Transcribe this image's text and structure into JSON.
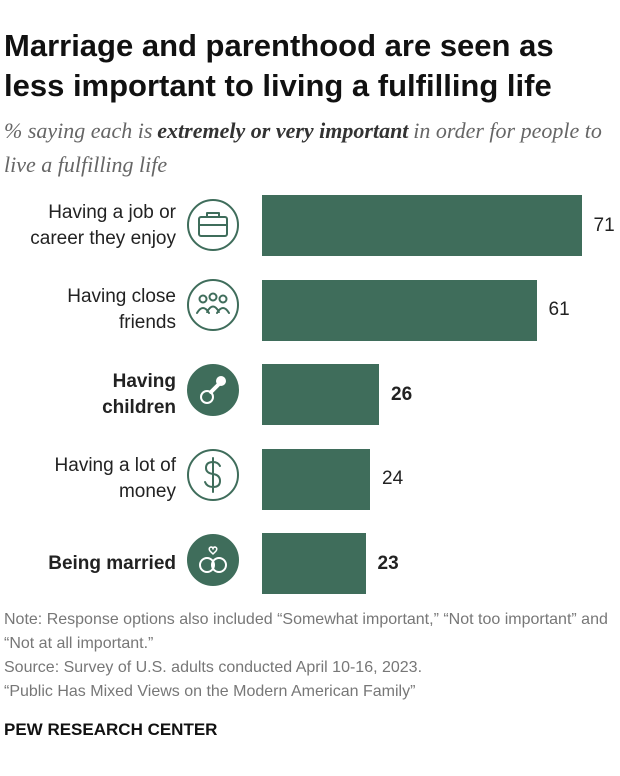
{
  "chart_data": {
    "type": "bar",
    "orientation": "horizontal",
    "title": "Marriage and parenthood are seen as less important to living a fulfilling life",
    "subtitle": {
      "before": "% saying each is",
      "emphasis": "extremely or very important",
      "after": "in order for people to live a fulfilling life"
    },
    "categories": [
      "Having a job or\ncareer they enjoy",
      "Having close\nfriends",
      "Having\nchildren",
      "Having a lot of\nmoney",
      "Being married"
    ],
    "values": [
      71,
      61,
      26,
      24,
      23
    ],
    "bold": [
      false,
      false,
      true,
      false,
      true
    ],
    "color": "#3f6d5b",
    "notes": [
      "Note: Response options also included “Somewhat important,” “Not too important” and “Not at all important.”",
      "Source: Survey of U.S. adults conducted April 10-16, 2023.",
      "“Public Has Mixed Views on the Modern American Family”"
    ],
    "source_org": "PEW RESEARCH CENTER"
  }
}
